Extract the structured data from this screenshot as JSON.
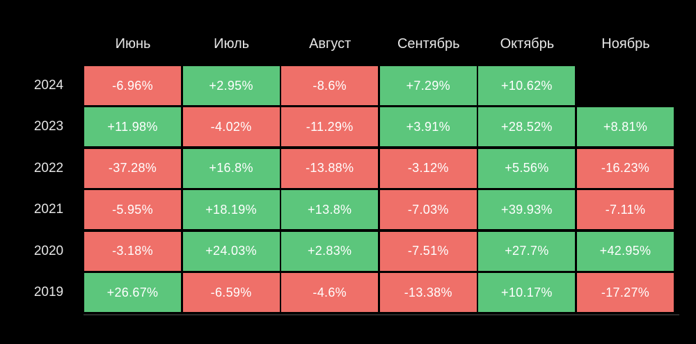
{
  "chart_data": {
    "type": "heatmap",
    "title": "",
    "columns": [
      "Июнь",
      "Июль",
      "Август",
      "Сентябрь",
      "Октябрь",
      "Ноябрь"
    ],
    "rows": [
      "2024",
      "2023",
      "2022",
      "2021",
      "2020",
      "2019"
    ],
    "values": [
      [
        -6.96,
        2.95,
        -8.6,
        7.29,
        10.62,
        null
      ],
      [
        11.98,
        -4.02,
        -11.29,
        3.91,
        28.52,
        8.81
      ],
      [
        -37.28,
        16.8,
        -13.88,
        -3.12,
        5.56,
        -16.23
      ],
      [
        -5.95,
        18.19,
        13.8,
        -7.03,
        39.93,
        -7.11
      ],
      [
        -3.18,
        24.03,
        2.83,
        -7.51,
        27.7,
        42.95
      ],
      [
        26.67,
        -6.59,
        -4.6,
        -13.38,
        10.17,
        -17.27
      ]
    ],
    "labels": [
      [
        "-6.96%",
        "+2.95%",
        "-8.6%",
        "+7.29%",
        "+10.62%",
        ""
      ],
      [
        "+11.98%",
        "-4.02%",
        "-11.29%",
        "+3.91%",
        "+28.52%",
        "+8.81%"
      ],
      [
        "-37.28%",
        "+16.8%",
        "-13.88%",
        "-3.12%",
        "+5.56%",
        "-16.23%"
      ],
      [
        "-5.95%",
        "+18.19%",
        "+13.8%",
        "-7.03%",
        "+39.93%",
        "-7.11%"
      ],
      [
        "-3.18%",
        "+24.03%",
        "+2.83%",
        "-7.51%",
        "+27.7%",
        "+42.95%"
      ],
      [
        "+26.67%",
        "-6.59%",
        "-4.6%",
        "-13.38%",
        "+10.17%",
        "-17.27%"
      ]
    ],
    "colors": {
      "positive": "#5cc67c",
      "negative": "#ef7069",
      "background": "#000000",
      "text": "#ffffff",
      "header_text": "#e6e6e6"
    }
  }
}
